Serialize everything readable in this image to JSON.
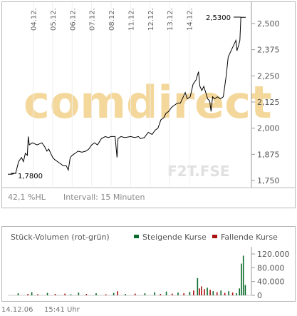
{
  "price_chart": {
    "type": "line",
    "watermark": "comdirect",
    "exchange_label": "F2T.FSE",
    "dates": [
      "04.12.",
      "05.12.",
      "06.12.",
      "07.12.",
      "08.12.",
      "11.12.",
      "12.12.",
      "13.12.",
      "14.12."
    ],
    "y_ticks": [
      "2,500",
      "2,375",
      "2,250",
      "2,125",
      "2,000",
      "1,875",
      "1,750"
    ],
    "ylim": [
      1.75,
      2.53
    ],
    "low_label": "1,7800",
    "high_label": "2,5300",
    "footer_left": "42,1 %HL",
    "footer_interval": "Intervall: 15 Minuten",
    "line_color": "#000000",
    "series": [
      [
        0.0,
        1.78
      ],
      [
        0.2,
        1.78
      ],
      [
        0.4,
        1.785
      ],
      [
        0.55,
        1.84
      ],
      [
        0.7,
        1.86
      ],
      [
        0.8,
        1.84
      ],
      [
        0.9,
        1.88
      ],
      [
        1.0,
        1.87
      ],
      [
        1.05,
        1.96
      ],
      [
        1.1,
        1.92
      ],
      [
        1.25,
        1.93
      ],
      [
        1.5,
        1.92
      ],
      [
        1.75,
        1.93
      ],
      [
        1.9,
        1.91
      ],
      [
        2.0,
        1.89
      ],
      [
        2.1,
        1.9
      ],
      [
        2.2,
        1.88
      ],
      [
        2.3,
        1.86
      ],
      [
        2.4,
        1.85
      ],
      [
        2.55,
        1.84
      ],
      [
        2.7,
        1.83
      ],
      [
        2.85,
        1.82
      ],
      [
        3.0,
        1.82
      ],
      [
        3.1,
        1.8
      ],
      [
        3.2,
        1.86
      ],
      [
        3.3,
        1.87
      ],
      [
        3.45,
        1.88
      ],
      [
        3.6,
        1.89
      ],
      [
        3.8,
        1.885
      ],
      [
        4.0,
        1.89
      ],
      [
        4.15,
        1.9
      ],
      [
        4.3,
        1.92
      ],
      [
        4.45,
        1.93
      ],
      [
        4.6,
        1.92
      ],
      [
        4.8,
        1.95
      ],
      [
        5.0,
        1.96
      ],
      [
        5.15,
        1.955
      ],
      [
        5.3,
        1.96
      ],
      [
        5.5,
        1.96
      ],
      [
        5.6,
        1.86
      ],
      [
        5.65,
        1.95
      ],
      [
        5.8,
        1.96
      ],
      [
        6.0,
        1.955
      ],
      [
        6.3,
        1.96
      ],
      [
        6.5,
        1.955
      ],
      [
        6.7,
        1.96
      ],
      [
        6.8,
        1.95
      ],
      [
        7.0,
        1.955
      ],
      [
        7.2,
        1.98
      ],
      [
        7.4,
        1.97
      ],
      [
        7.55,
        1.99
      ],
      [
        7.7,
        2.0
      ],
      [
        7.85,
        2.04
      ],
      [
        8.0,
        2.05
      ],
      [
        8.1,
        2.07
      ],
      [
        8.25,
        2.08
      ],
      [
        8.4,
        2.1
      ],
      [
        8.55,
        2.11
      ],
      [
        8.7,
        2.12
      ],
      [
        8.85,
        2.12
      ],
      [
        9.0,
        2.15
      ],
      [
        9.1,
        2.17
      ],
      [
        9.2,
        2.14
      ],
      [
        9.35,
        2.15
      ],
      [
        9.5,
        2.21
      ],
      [
        9.65,
        2.23
      ],
      [
        9.78,
        2.27
      ],
      [
        9.85,
        2.2
      ],
      [
        9.95,
        2.18
      ],
      [
        10.05,
        2.2
      ],
      [
        10.15,
        2.17
      ],
      [
        10.25,
        2.14
      ],
      [
        10.35,
        2.13
      ],
      [
        10.42,
        2.08
      ],
      [
        10.5,
        2.15
      ],
      [
        10.6,
        2.14
      ],
      [
        10.75,
        2.15
      ],
      [
        10.9,
        2.14
      ],
      [
        11.05,
        2.15
      ],
      [
        11.2,
        2.25
      ],
      [
        11.3,
        2.34
      ],
      [
        11.4,
        2.36
      ],
      [
        11.5,
        2.38
      ],
      [
        11.6,
        2.4
      ],
      [
        11.7,
        2.42
      ],
      [
        11.75,
        2.37
      ],
      [
        11.85,
        2.4
      ],
      [
        11.9,
        2.42
      ],
      [
        11.95,
        2.53
      ],
      [
        12.2,
        2.53
      ]
    ]
  },
  "volume_chart": {
    "type": "bar",
    "title": "Stück-Volumen (rot-grün)",
    "legend_up": "Steigende Kurse",
    "legend_down": "Fallende Kurse",
    "up_color": "#0a6b2a",
    "down_color": "#aa1111",
    "y_ticks": [
      "120.000",
      "80.000",
      "40.000",
      "0"
    ],
    "ylim": [
      0,
      120000
    ],
    "bars": [
      {
        "x": 0.5,
        "v": 6000,
        "d": "up"
      },
      {
        "x": 1.0,
        "v": 4000,
        "d": "down"
      },
      {
        "x": 1.2,
        "v": 9000,
        "d": "up"
      },
      {
        "x": 1.5,
        "v": 3000,
        "d": "down"
      },
      {
        "x": 2.0,
        "v": 7000,
        "d": "up"
      },
      {
        "x": 2.4,
        "v": 4000,
        "d": "down"
      },
      {
        "x": 2.9,
        "v": 5000,
        "d": "down"
      },
      {
        "x": 3.2,
        "v": 3000,
        "d": "up"
      },
      {
        "x": 3.6,
        "v": 8000,
        "d": "up"
      },
      {
        "x": 4.0,
        "v": 4000,
        "d": "down"
      },
      {
        "x": 4.5,
        "v": 6000,
        "d": "up"
      },
      {
        "x": 5.0,
        "v": 3000,
        "d": "down"
      },
      {
        "x": 5.4,
        "v": 7000,
        "d": "up"
      },
      {
        "x": 5.6,
        "v": 12000,
        "d": "down"
      },
      {
        "x": 6.0,
        "v": 4000,
        "d": "up"
      },
      {
        "x": 6.5,
        "v": 5000,
        "d": "down"
      },
      {
        "x": 7.0,
        "v": 6000,
        "d": "up"
      },
      {
        "x": 7.5,
        "v": 9000,
        "d": "up"
      },
      {
        "x": 7.8,
        "v": 4000,
        "d": "down"
      },
      {
        "x": 8.1,
        "v": 11000,
        "d": "up"
      },
      {
        "x": 8.4,
        "v": 5000,
        "d": "down"
      },
      {
        "x": 8.7,
        "v": 8000,
        "d": "up"
      },
      {
        "x": 9.0,
        "v": 6000,
        "d": "down"
      },
      {
        "x": 9.3,
        "v": 10000,
        "d": "up"
      },
      {
        "x": 9.5,
        "v": 14000,
        "d": "down"
      },
      {
        "x": 9.7,
        "v": 50000,
        "d": "up"
      },
      {
        "x": 9.8,
        "v": 20000,
        "d": "down"
      },
      {
        "x": 9.9,
        "v": 26000,
        "d": "down"
      },
      {
        "x": 10.05,
        "v": 18000,
        "d": "down"
      },
      {
        "x": 10.2,
        "v": 22000,
        "d": "up"
      },
      {
        "x": 10.35,
        "v": 16000,
        "d": "down"
      },
      {
        "x": 10.5,
        "v": 12000,
        "d": "up"
      },
      {
        "x": 10.7,
        "v": 9000,
        "d": "down"
      },
      {
        "x": 10.9,
        "v": 14000,
        "d": "up"
      },
      {
        "x": 11.1,
        "v": 7000,
        "d": "down"
      },
      {
        "x": 11.3,
        "v": 12000,
        "d": "up"
      },
      {
        "x": 11.5,
        "v": 8000,
        "d": "down"
      },
      {
        "x": 11.7,
        "v": 6000,
        "d": "up"
      },
      {
        "x": 11.85,
        "v": 20000,
        "d": "up"
      },
      {
        "x": 11.95,
        "v": 92000,
        "d": "up"
      },
      {
        "x": 12.05,
        "v": 115000,
        "d": "up"
      },
      {
        "x": 12.15,
        "v": 30000,
        "d": "up"
      }
    ]
  },
  "footer": {
    "date": "14.12.06",
    "time": "15:41 Uhr"
  }
}
